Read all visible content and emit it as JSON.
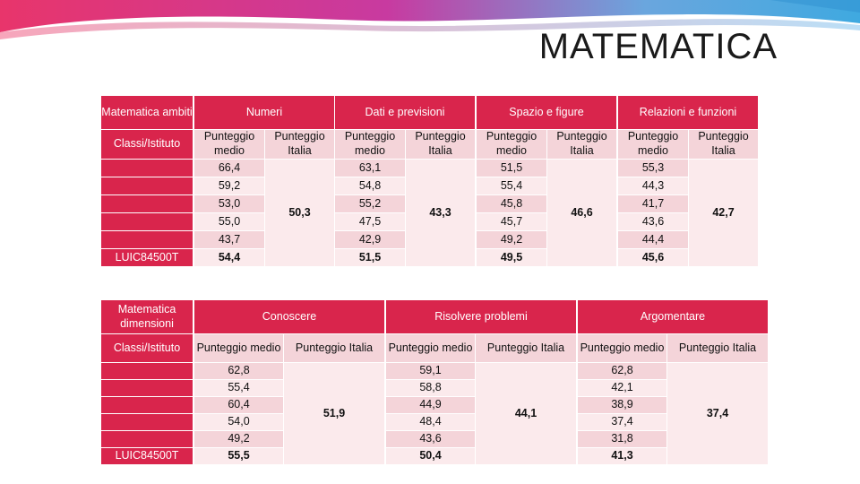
{
  "slide": {
    "title": "MATEMATICA",
    "colors": {
      "accent": "#d9254c",
      "cell_dark": "#f4d4d9",
      "cell_light": "#fbeaec"
    }
  },
  "table1": {
    "corner": "Matematica ambiti",
    "row_header": "Classi/Istituto",
    "school_label": "LUIC84500T",
    "groups": [
      "Numeri",
      "Dati e previsioni",
      "Spazio e figure",
      "Relazioni e funzioni"
    ],
    "sub_headers": [
      "Punteggio medio",
      "Punteggio Italia"
    ],
    "medio": [
      [
        "66,4",
        "59,2",
        "53,0",
        "55,0",
        "43,7",
        "54,4"
      ],
      [
        "63,1",
        "54,8",
        "55,2",
        "47,5",
        "42,9",
        "51,5"
      ],
      [
        "51,5",
        "55,4",
        "45,8",
        "45,7",
        "49,2",
        "49,5"
      ],
      [
        "55,3",
        "44,3",
        "41,7",
        "43,6",
        "44,4",
        "45,6"
      ]
    ],
    "italia": [
      "50,3",
      "43,3",
      "46,6",
      "42,7"
    ]
  },
  "table2": {
    "corner": "Matematica dimensioni",
    "row_header": "Classi/Istituto",
    "school_label": "LUIC84500T",
    "groups": [
      "Conoscere",
      "Risolvere problemi",
      "Argomentare"
    ],
    "sub_headers": [
      "Punteggio medio",
      "Punteggio Italia"
    ],
    "medio": [
      [
        "62,8",
        "55,4",
        "60,4",
        "54,0",
        "49,2",
        "55,5"
      ],
      [
        "59,1",
        "58,8",
        "44,9",
        "48,4",
        "43,6",
        "50,4"
      ],
      [
        "62,8",
        "42,1",
        "38,9",
        "37,4",
        "31,8",
        "41,3"
      ]
    ],
    "italia": [
      "51,9",
      "44,1",
      "37,4"
    ]
  }
}
